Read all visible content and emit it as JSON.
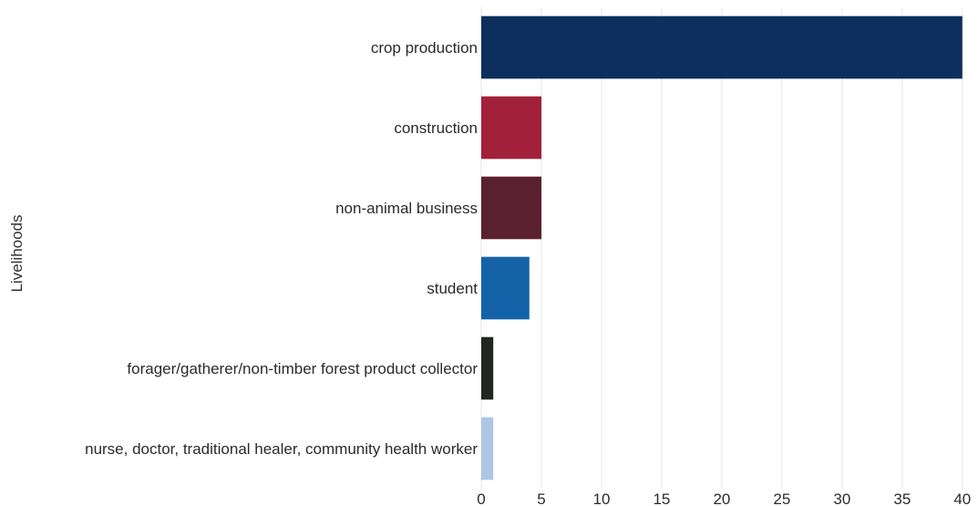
{
  "chart_data": {
    "type": "bar",
    "orientation": "horizontal",
    "ylabel": "Livelihoods",
    "xlabel": "",
    "categories": [
      "crop production",
      "construction",
      "non-animal business",
      "student",
      "forager/gatherer/non-timber forest product collector",
      "nurse, doctor, traditional healer, community health worker"
    ],
    "values": [
      40,
      5,
      5,
      4,
      1,
      1
    ],
    "colors": [
      "#0d2f5e",
      "#a3203a",
      "#5a2030",
      "#1463a8",
      "#222622",
      "#aec6e6"
    ],
    "xlim": [
      0,
      41
    ],
    "xticks": [
      0,
      5,
      10,
      15,
      20,
      25,
      30,
      35,
      40
    ],
    "grid": "vertical",
    "legend": "none"
  }
}
